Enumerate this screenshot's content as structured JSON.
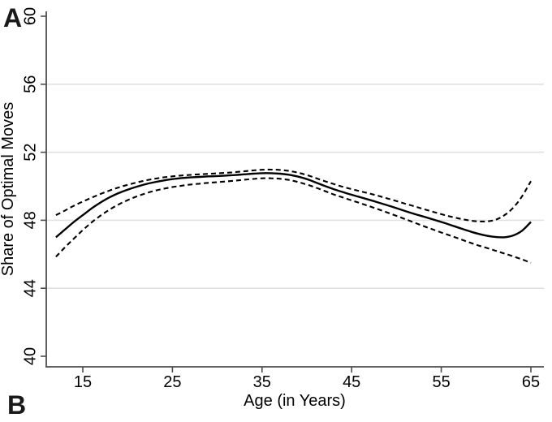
{
  "panels": {
    "a_label": "A",
    "b_label": "B"
  },
  "chart_data": {
    "type": "line",
    "title": "",
    "xlabel": "Age (in Years)",
    "ylabel": "Share of Optimal Moves",
    "xlim": [
      10.9,
      66.5
    ],
    "ylim": [
      39.4,
      60.3
    ],
    "x_ticks": [
      15,
      25,
      35,
      45,
      55,
      65
    ],
    "y_ticks": [
      40,
      44,
      48,
      52,
      56,
      60
    ],
    "gridlines_y": [
      44,
      48,
      52,
      56
    ],
    "grid": "horizontal-only",
    "legend": "none",
    "x": [
      12,
      13,
      14,
      15,
      16,
      17,
      18,
      19,
      20,
      21,
      22,
      23,
      24,
      25,
      26,
      27,
      28,
      29,
      30,
      31,
      32,
      33,
      34,
      35,
      36,
      37,
      38,
      39,
      40,
      41,
      42,
      43,
      44,
      45,
      46,
      47,
      48,
      49,
      50,
      51,
      52,
      53,
      54,
      55,
      56,
      57,
      58,
      59,
      60,
      61,
      62,
      63,
      64,
      65
    ],
    "series": [
      {
        "name": "share-of-optimal-moves-fit",
        "style": "solid",
        "values": [
          47.0,
          47.45,
          47.9,
          48.3,
          48.7,
          49.05,
          49.35,
          49.6,
          49.8,
          49.97,
          50.12,
          50.24,
          50.34,
          50.42,
          50.48,
          50.52,
          50.55,
          50.58,
          50.6,
          50.63,
          50.66,
          50.7,
          50.74,
          50.77,
          50.77,
          50.74,
          50.68,
          50.57,
          50.42,
          50.22,
          50.02,
          49.83,
          49.66,
          49.5,
          49.35,
          49.2,
          49.04,
          48.88,
          48.71,
          48.54,
          48.37,
          48.22,
          48.06,
          47.9,
          47.73,
          47.55,
          47.38,
          47.22,
          47.1,
          47.02,
          47.0,
          47.1,
          47.38,
          47.9
        ]
      },
      {
        "name": "confidence-band-upper",
        "style": "dashed",
        "values": [
          48.3,
          48.57,
          48.85,
          49.1,
          49.33,
          49.55,
          49.75,
          49.93,
          50.08,
          50.22,
          50.34,
          50.44,
          50.52,
          50.58,
          50.63,
          50.67,
          50.7,
          50.73,
          50.76,
          50.79,
          50.83,
          50.88,
          50.93,
          50.97,
          50.98,
          50.96,
          50.9,
          50.8,
          50.66,
          50.48,
          50.3,
          50.13,
          49.97,
          49.83,
          49.7,
          49.57,
          49.43,
          49.28,
          49.13,
          48.97,
          48.82,
          48.66,
          48.51,
          48.36,
          48.22,
          48.1,
          48.0,
          47.94,
          47.93,
          48.02,
          48.28,
          48.72,
          49.4,
          50.3
        ]
      },
      {
        "name": "confidence-band-lower",
        "style": "dashed",
        "values": [
          45.85,
          46.4,
          46.92,
          47.42,
          47.88,
          48.28,
          48.63,
          48.93,
          49.18,
          49.4,
          49.58,
          49.73,
          49.85,
          49.95,
          50.03,
          50.1,
          50.15,
          50.2,
          50.24,
          50.28,
          50.33,
          50.38,
          50.43,
          50.47,
          50.47,
          50.44,
          50.37,
          50.25,
          50.1,
          49.92,
          49.72,
          49.52,
          49.34,
          49.17,
          49.0,
          48.82,
          48.64,
          48.45,
          48.26,
          48.06,
          47.86,
          47.66,
          47.47,
          47.28,
          47.1,
          46.91,
          46.72,
          46.54,
          46.38,
          46.22,
          46.05,
          45.88,
          45.7,
          45.5
        ]
      }
    ],
    "colors": {
      "line": "#000000",
      "grid": "#e1e1e1",
      "axis": "#4d4d4d",
      "text": "#000000"
    }
  }
}
